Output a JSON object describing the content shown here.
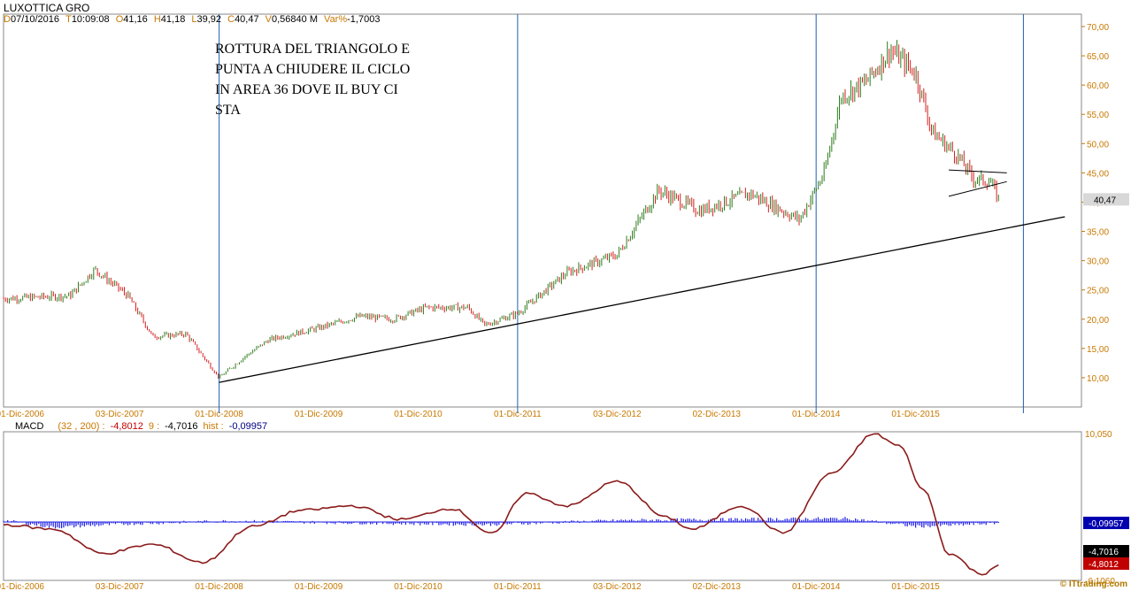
{
  "header": {
    "title": "LUXOTTICA GRO",
    "fields": [
      {
        "label": "D",
        "value": "07/10/2016"
      },
      {
        "label": "T",
        "value": "10:09:08"
      },
      {
        "label": "O",
        "value": "41,16"
      },
      {
        "label": "H",
        "value": "41,18"
      },
      {
        "label": "L",
        "value": "39,92"
      },
      {
        "label": "C",
        "value": "40,47"
      },
      {
        "label": "V",
        "value": "0,56840 M"
      },
      {
        "label": "Var%",
        "value": "-1,7003"
      }
    ]
  },
  "annotation": "ROTTURA DEL TRIANGOLO E\nPUNTA A CHIUDERE IL CICLO\nIN AREA 36 DOVE IL BUY CI\nSTA",
  "watermark": "© ITtrading.com",
  "colors": {
    "up": "#2e7d1e",
    "down": "#d42020",
    "macd": "#8b1a1a",
    "signal": "#1e1ee6",
    "grid": "#2060b0",
    "axis_text": "#c87800"
  },
  "chart_data": [
    {
      "type": "candlestick",
      "title": "LUXOTTICA GRO",
      "ylim": [
        5,
        70
      ],
      "y_ticks": [
        "70,00",
        "65,00",
        "60,00",
        "55,00",
        "50,00",
        "45,00",
        "40,00",
        "35,00",
        "30,00",
        "25,00",
        "20,00",
        "15,00",
        "10,00"
      ],
      "x_tick_labels": [
        "01-Dic-2006",
        "03-Dic-2007",
        "01-Dic-2008",
        "01-Dic-2009",
        "01-Dic-2010",
        "01-Dic-2011",
        "03-Dic-2012",
        "02-Dic-2013",
        "01-Dic-2014",
        "01-Dic-2015"
      ],
      "last_price_label": "40,47",
      "price_path": [
        {
          "date": "2006-10",
          "close": 23.5
        },
        {
          "date": "2007-06",
          "close": 24.0
        },
        {
          "date": "2007-09",
          "close": 28.5
        },
        {
          "date": "2008-01",
          "close": 24.0
        },
        {
          "date": "2008-04",
          "close": 17.0
        },
        {
          "date": "2008-08",
          "close": 17.5
        },
        {
          "date": "2008-12",
          "close": 10.0
        },
        {
          "date": "2009-03",
          "close": 13.5
        },
        {
          "date": "2009-06",
          "close": 16.5
        },
        {
          "date": "2009-12",
          "close": 18.5
        },
        {
          "date": "2010-05",
          "close": 20.5
        },
        {
          "date": "2010-09",
          "close": 20.0
        },
        {
          "date": "2011-01",
          "close": 22.0
        },
        {
          "date": "2011-06",
          "close": 22.0
        },
        {
          "date": "2011-08",
          "close": 19.0
        },
        {
          "date": "2011-12",
          "close": 21.0
        },
        {
          "date": "2012-06",
          "close": 28.0
        },
        {
          "date": "2012-12",
          "close": 31.0
        },
        {
          "date": "2013-05",
          "close": 42.0
        },
        {
          "date": "2013-10",
          "close": 38.5
        },
        {
          "date": "2014-04",
          "close": 41.5
        },
        {
          "date": "2014-10",
          "close": 37.0
        },
        {
          "date": "2015-01",
          "close": 45.0
        },
        {
          "date": "2015-03",
          "close": 58.0
        },
        {
          "date": "2015-06",
          "close": 60.5
        },
        {
          "date": "2015-09",
          "close": 66.0
        },
        {
          "date": "2015-12",
          "close": 62.0
        },
        {
          "date": "2016-02",
          "close": 52.0
        },
        {
          "date": "2016-05",
          "close": 48.0
        },
        {
          "date": "2016-07",
          "close": 44.0
        },
        {
          "date": "2016-09",
          "close": 43.5
        },
        {
          "date": "2016-10",
          "close": 40.5
        }
      ],
      "vertical_lines": [
        "2008-12",
        "2011-12",
        "2014-12",
        "2017-01"
      ],
      "trendline": {
        "from": {
          "date": "2008-12",
          "price": 9.2
        },
        "to": {
          "date": "2017-06",
          "price": 37.5
        }
      },
      "triangle": [
        {
          "from": {
            "date": "2016-04",
            "price": 45.5
          },
          "to": {
            "date": "2016-11",
            "price": 45.0
          }
        },
        {
          "from": {
            "date": "2016-04",
            "price": 41.0
          },
          "to": {
            "date": "2016-11",
            "price": 43.5
          }
        }
      ]
    },
    {
      "type": "line",
      "title": "MACD",
      "params": "(32 , 200) :",
      "macd_value": "-4,8012",
      "signal_label": "9 :",
      "signal_value": "-4,7016",
      "hist_label": "hist :",
      "hist_value": "-0,09957",
      "ylim": [
        -6.106,
        10.05
      ],
      "y_ticks": [
        "10,050",
        "-6,1060"
      ],
      "value_boxes": [
        "-0,09957",
        "-4,7016",
        "-4,8012"
      ],
      "series": [
        {
          "name": "MACD",
          "points": [
            {
              "date": "2006-10",
              "value": -0.3
            },
            {
              "date": "2007-04",
              "value": -0.8
            },
            {
              "date": "2007-10",
              "value": -3.5
            },
            {
              "date": "2008-04",
              "value": -2.5
            },
            {
              "date": "2008-10",
              "value": -4.5
            },
            {
              "date": "2009-04",
              "value": -0.5
            },
            {
              "date": "2009-10",
              "value": 1.3
            },
            {
              "date": "2010-04",
              "value": 1.8
            },
            {
              "date": "2010-10",
              "value": 0.3
            },
            {
              "date": "2011-04",
              "value": 1.5
            },
            {
              "date": "2011-09",
              "value": -1.3
            },
            {
              "date": "2012-01",
              "value": 3.2
            },
            {
              "date": "2012-06",
              "value": 1.8
            },
            {
              "date": "2012-12",
              "value": 4.5
            },
            {
              "date": "2013-06",
              "value": 0.5
            },
            {
              "date": "2013-09",
              "value": -0.8
            },
            {
              "date": "2014-03",
              "value": 1.8
            },
            {
              "date": "2014-08",
              "value": -1.2
            },
            {
              "date": "2015-02",
              "value": 5.5
            },
            {
              "date": "2015-07",
              "value": 9.8
            },
            {
              "date": "2015-10",
              "value": 8.5
            },
            {
              "date": "2016-01",
              "value": 3.5
            },
            {
              "date": "2016-04",
              "value": -3.5
            },
            {
              "date": "2016-08",
              "value": -5.8
            },
            {
              "date": "2016-10",
              "value": -4.8
            }
          ]
        },
        {
          "name": "hist",
          "points": [
            {
              "date": "2006-10",
              "value": 0.2
            },
            {
              "date": "2007-04",
              "value": -0.6
            },
            {
              "date": "2008-01",
              "value": -0.2
            },
            {
              "date": "2009-01",
              "value": 0.1
            },
            {
              "date": "2011-08",
              "value": -0.3
            },
            {
              "date": "2013-01",
              "value": 0.2
            },
            {
              "date": "2015-04",
              "value": 0.4
            },
            {
              "date": "2015-12",
              "value": -0.5
            },
            {
              "date": "2016-06",
              "value": -0.3
            },
            {
              "date": "2016-10",
              "value": -0.1
            }
          ]
        }
      ]
    }
  ]
}
